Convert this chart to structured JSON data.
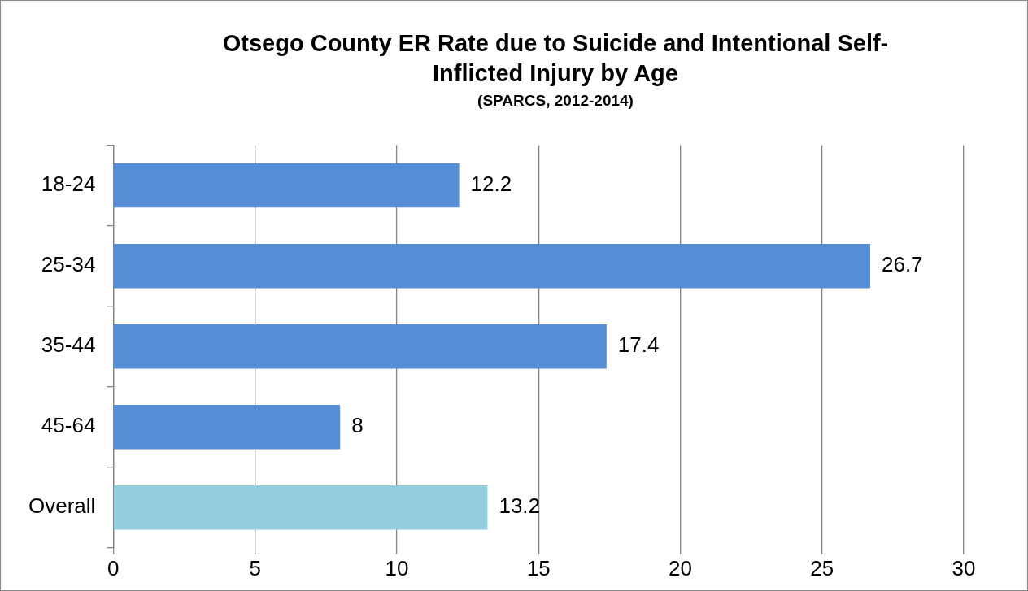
{
  "chart_data": {
    "type": "bar",
    "orientation": "horizontal",
    "title": "Otsego County ER Rate due to Suicide and Intentional Self-Inflicted Injury by Age",
    "subtitle": "(SPARCS, 2012-2014)",
    "categories": [
      "18-24",
      "25-34",
      "35-44",
      "45-64",
      "Overall"
    ],
    "values": [
      12.2,
      26.7,
      17.4,
      8,
      13.2
    ],
    "colors": [
      "#558ed5",
      "#558ed5",
      "#558ed5",
      "#558ed5",
      "#93cddd"
    ],
    "xlim": [
      0,
      30
    ],
    "xticks": [
      0,
      5,
      10,
      15,
      20,
      25,
      30
    ],
    "grid": "x",
    "legend": false,
    "data_labels": true
  }
}
